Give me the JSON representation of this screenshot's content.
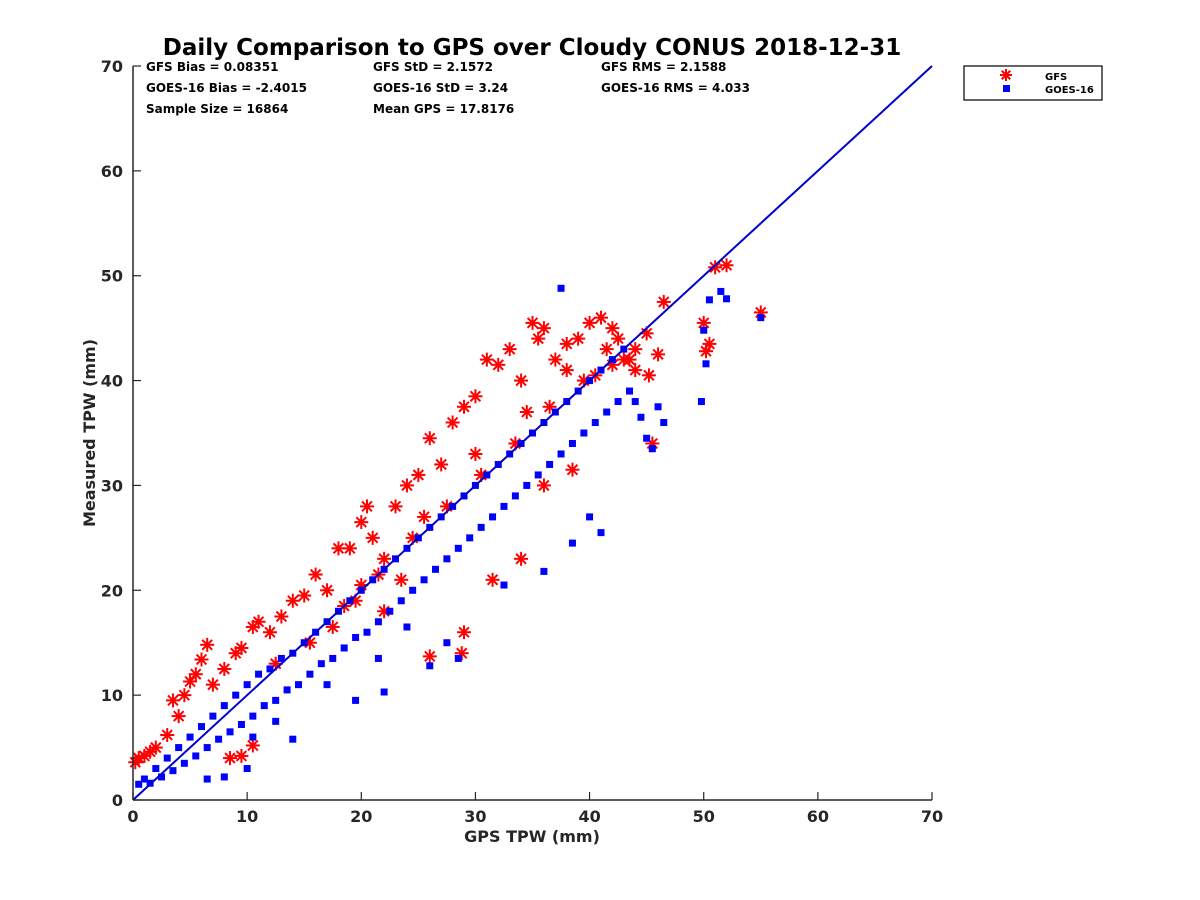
{
  "chart_data": {
    "type": "scatter",
    "title": "Daily Comparison to GPS over Cloudy CONUS 2018-12-31",
    "xlabel": "GPS TPW (mm)",
    "ylabel": "Measured TPW (mm)",
    "xlim": [
      0,
      70
    ],
    "ylim": [
      0,
      70
    ],
    "xticks": [
      0,
      10,
      20,
      30,
      40,
      50,
      60,
      70
    ],
    "yticks": [
      0,
      10,
      20,
      30,
      40,
      50,
      60,
      70
    ],
    "grid": false,
    "legend_position": "outside-top-right",
    "stats": [
      [
        "GFS Bias = 0.08351",
        "GFS StD = 2.1572",
        "GFS RMS = 2.1588"
      ],
      [
        "GOES-16 Bias = -2.4015",
        "GOES-16 StD = 3.24",
        "GOES-16 RMS = 4.033"
      ],
      [
        "Sample Size = 16864",
        "Mean GPS = 17.8176",
        ""
      ]
    ],
    "reference_line": {
      "x": [
        0,
        70
      ],
      "y": [
        0,
        70
      ],
      "color": "#0000cc"
    },
    "series": [
      {
        "name": "GFS",
        "marker": "asterisk",
        "color": "#ff0000",
        "points": [
          [
            0.2,
            3.6
          ],
          [
            0.5,
            4.0
          ],
          [
            1.0,
            4.2
          ],
          [
            1.5,
            4.6
          ],
          [
            2.0,
            5.0
          ],
          [
            3.0,
            6.2
          ],
          [
            4.0,
            8.0
          ],
          [
            5.0,
            11.3
          ],
          [
            5.5,
            12.0
          ],
          [
            6.0,
            13.4
          ],
          [
            6.5,
            14.8
          ],
          [
            7.0,
            11.0
          ],
          [
            8.0,
            12.5
          ],
          [
            9.0,
            14.0
          ],
          [
            9.5,
            14.5
          ],
          [
            10.5,
            16.5
          ],
          [
            11.0,
            17.0
          ],
          [
            12.0,
            16.0
          ],
          [
            13.0,
            17.5
          ],
          [
            14.0,
            19.0
          ],
          [
            15.0,
            19.5
          ],
          [
            16.0,
            21.5
          ],
          [
            17.0,
            20.0
          ],
          [
            18.0,
            24.0
          ],
          [
            19.0,
            24.0
          ],
          [
            20.0,
            26.5
          ],
          [
            20.5,
            28.0
          ],
          [
            21.0,
            25.0
          ],
          [
            22.0,
            23.0
          ],
          [
            23.0,
            28.0
          ],
          [
            24.0,
            30.0
          ],
          [
            25.0,
            31.0
          ],
          [
            26.0,
            34.5
          ],
          [
            27.0,
            32.0
          ],
          [
            28.0,
            36.0
          ],
          [
            29.0,
            37.5
          ],
          [
            30.0,
            38.5
          ],
          [
            31.0,
            42.0
          ],
          [
            32.0,
            41.5
          ],
          [
            33.0,
            43.0
          ],
          [
            34.0,
            40.0
          ],
          [
            35.0,
            45.5
          ],
          [
            35.5,
            44.0
          ],
          [
            36.0,
            45.0
          ],
          [
            37.0,
            42.0
          ],
          [
            38.0,
            43.5
          ],
          [
            39.0,
            44.0
          ],
          [
            40.0,
            45.5
          ],
          [
            41.0,
            46.0
          ],
          [
            42.0,
            45.0
          ],
          [
            42.5,
            44.0
          ],
          [
            43.0,
            42.0
          ],
          [
            44.0,
            43.0
          ],
          [
            45.0,
            44.5
          ],
          [
            46.0,
            42.5
          ],
          [
            46.5,
            47.5
          ],
          [
            50.0,
            45.5
          ],
          [
            50.5,
            43.5
          ],
          [
            50.2,
            42.8
          ],
          [
            51.0,
            50.8
          ],
          [
            52.0,
            51.0
          ],
          [
            55.0,
            46.5
          ],
          [
            28.8,
            14.0
          ],
          [
            29.0,
            16.0
          ],
          [
            26.0,
            13.7
          ],
          [
            22.0,
            18.0
          ],
          [
            23.5,
            21.0
          ],
          [
            20.0,
            20.5
          ],
          [
            31.5,
            21.0
          ],
          [
            34.0,
            23.0
          ],
          [
            36.0,
            30.0
          ],
          [
            38.5,
            31.5
          ],
          [
            40.5,
            40.5
          ],
          [
            42.0,
            41.5
          ],
          [
            44.0,
            41.0
          ],
          [
            45.5,
            34.0
          ],
          [
            10.5,
            5.2
          ],
          [
            9.5,
            4.2
          ],
          [
            8.5,
            4.0
          ],
          [
            3.5,
            9.5
          ],
          [
            4.5,
            10.0
          ],
          [
            12.5,
            13.0
          ],
          [
            15.5,
            15.0
          ],
          [
            17.5,
            16.5
          ],
          [
            19.5,
            19.0
          ],
          [
            21.5,
            21.5
          ],
          [
            24.5,
            25.0
          ],
          [
            27.5,
            28.0
          ],
          [
            30.5,
            31.0
          ],
          [
            33.5,
            34.0
          ],
          [
            36.5,
            37.5
          ],
          [
            39.5,
            40.0
          ],
          [
            41.5,
            43.0
          ],
          [
            43.5,
            42.0
          ],
          [
            45.2,
            40.5
          ],
          [
            38.0,
            41.0
          ],
          [
            34.5,
            37.0
          ],
          [
            30.0,
            33.0
          ],
          [
            25.5,
            27.0
          ],
          [
            18.5,
            18.5
          ]
        ]
      },
      {
        "name": "GOES-16",
        "marker": "square",
        "color": "#0000ff",
        "points": [
          [
            0.5,
            1.5
          ],
          [
            1.0,
            2.0
          ],
          [
            1.5,
            1.6
          ],
          [
            2.0,
            3.0
          ],
          [
            2.5,
            2.2
          ],
          [
            3.0,
            4.0
          ],
          [
            3.5,
            2.8
          ],
          [
            4.0,
            5.0
          ],
          [
            4.5,
            3.5
          ],
          [
            5.0,
            6.0
          ],
          [
            5.5,
            4.2
          ],
          [
            6.0,
            7.0
          ],
          [
            6.5,
            5.0
          ],
          [
            7.0,
            8.0
          ],
          [
            7.5,
            5.8
          ],
          [
            8.0,
            9.0
          ],
          [
            8.5,
            6.5
          ],
          [
            9.0,
            10.0
          ],
          [
            9.5,
            7.2
          ],
          [
            10.0,
            11.0
          ],
          [
            10.5,
            8.0
          ],
          [
            11.0,
            12.0
          ],
          [
            11.5,
            9.0
          ],
          [
            12.0,
            12.5
          ],
          [
            12.5,
            9.5
          ],
          [
            13.0,
            13.5
          ],
          [
            13.5,
            10.5
          ],
          [
            14.0,
            14.0
          ],
          [
            14.5,
            11.0
          ],
          [
            15.0,
            15.0
          ],
          [
            15.5,
            12.0
          ],
          [
            16.0,
            16.0
          ],
          [
            16.5,
            13.0
          ],
          [
            17.0,
            17.0
          ],
          [
            17.5,
            13.5
          ],
          [
            18.0,
            18.0
          ],
          [
            18.5,
            14.5
          ],
          [
            19.0,
            19.0
          ],
          [
            19.5,
            15.5
          ],
          [
            20.0,
            20.0
          ],
          [
            20.5,
            16.0
          ],
          [
            21.0,
            21.0
          ],
          [
            21.5,
            17.0
          ],
          [
            22.0,
            22.0
          ],
          [
            22.5,
            18.0
          ],
          [
            23.0,
            23.0
          ],
          [
            23.5,
            19.0
          ],
          [
            24.0,
            24.0
          ],
          [
            24.5,
            20.0
          ],
          [
            25.0,
            25.0
          ],
          [
            25.5,
            21.0
          ],
          [
            26.0,
            26.0
          ],
          [
            26.5,
            22.0
          ],
          [
            27.0,
            27.0
          ],
          [
            27.5,
            23.0
          ],
          [
            28.0,
            28.0
          ],
          [
            28.5,
            24.0
          ],
          [
            29.0,
            29.0
          ],
          [
            29.5,
            25.0
          ],
          [
            30.0,
            30.0
          ],
          [
            30.5,
            26.0
          ],
          [
            31.0,
            31.0
          ],
          [
            31.5,
            27.0
          ],
          [
            32.0,
            32.0
          ],
          [
            32.5,
            28.0
          ],
          [
            33.0,
            33.0
          ],
          [
            33.5,
            29.0
          ],
          [
            34.0,
            34.0
          ],
          [
            34.5,
            30.0
          ],
          [
            35.0,
            35.0
          ],
          [
            35.5,
            31.0
          ],
          [
            36.0,
            36.0
          ],
          [
            36.5,
            32.0
          ],
          [
            37.0,
            37.0
          ],
          [
            37.5,
            33.0
          ],
          [
            38.0,
            38.0
          ],
          [
            38.5,
            34.0
          ],
          [
            39.0,
            39.0
          ],
          [
            39.5,
            35.0
          ],
          [
            40.0,
            40.0
          ],
          [
            40.5,
            36.0
          ],
          [
            41.0,
            41.0
          ],
          [
            41.5,
            37.0
          ],
          [
            42.0,
            42.0
          ],
          [
            42.5,
            38.0
          ],
          [
            43.0,
            43.0
          ],
          [
            43.5,
            39.0
          ],
          [
            44.0,
            38.0
          ],
          [
            44.5,
            36.5
          ],
          [
            45.0,
            34.5
          ],
          [
            45.5,
            33.5
          ],
          [
            46.0,
            37.5
          ],
          [
            46.5,
            36.0
          ],
          [
            37.5,
            48.8
          ],
          [
            50.5,
            47.7
          ],
          [
            51.5,
            48.5
          ],
          [
            52.0,
            47.8
          ],
          [
            50.0,
            44.8
          ],
          [
            50.2,
            41.6
          ],
          [
            49.8,
            38.0
          ],
          [
            55.0,
            46.0
          ],
          [
            6.5,
            2.0
          ],
          [
            8.0,
            2.2
          ],
          [
            10.0,
            3.0
          ],
          [
            14.0,
            5.8
          ],
          [
            19.5,
            9.5
          ],
          [
            22.0,
            10.3
          ],
          [
            26.0,
            12.8
          ],
          [
            28.5,
            13.5
          ],
          [
            27.5,
            15.0
          ],
          [
            32.5,
            20.5
          ],
          [
            36.0,
            21.8
          ],
          [
            38.5,
            24.5
          ],
          [
            40.0,
            27.0
          ],
          [
            41.0,
            25.5
          ],
          [
            24.0,
            16.5
          ],
          [
            21.5,
            13.5
          ],
          [
            17.0,
            11.0
          ],
          [
            12.5,
            7.5
          ],
          [
            10.5,
            6.0
          ]
        ]
      }
    ]
  }
}
